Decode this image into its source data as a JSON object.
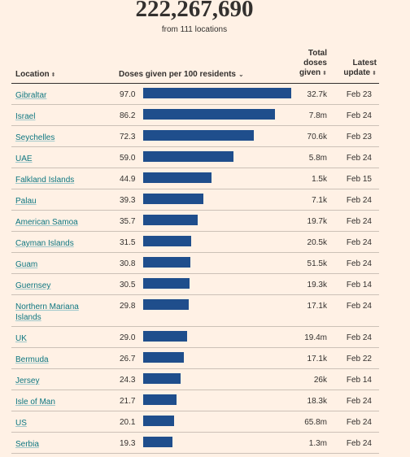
{
  "header": {
    "total_doses": "222,267,690",
    "subtitle": "from 111 locations"
  },
  "columns": {
    "location": "Location",
    "doses": "Doses given per 100 residents",
    "total_line1": "Total",
    "total_line2": "doses",
    "total_line3": "given",
    "latest_line1": "Latest",
    "latest_line2": "update",
    "sort_glyph": "⬍",
    "caret_glyph": "⌄"
  },
  "colors": {
    "bar": "#1f4e8c",
    "background": "#fff1e5",
    "link": "#0d7680"
  },
  "rows": [
    {
      "location": "Gibraltar",
      "per100": "97.0",
      "value": 97.0,
      "total": "32.7k",
      "updated": "Feb 23"
    },
    {
      "location": "Israel",
      "per100": "86.2",
      "value": 86.2,
      "total": "7.8m",
      "updated": "Feb 24"
    },
    {
      "location": "Seychelles",
      "per100": "72.3",
      "value": 72.3,
      "total": "70.6k",
      "updated": "Feb 23"
    },
    {
      "location": "UAE",
      "per100": "59.0",
      "value": 59.0,
      "total": "5.8m",
      "updated": "Feb 24"
    },
    {
      "location": "Falkland Islands",
      "per100": "44.9",
      "value": 44.9,
      "total": "1.5k",
      "updated": "Feb 15"
    },
    {
      "location": "Palau",
      "per100": "39.3",
      "value": 39.3,
      "total": "7.1k",
      "updated": "Feb 24"
    },
    {
      "location": "American Samoa",
      "per100": "35.7",
      "value": 35.7,
      "total": "19.7k",
      "updated": "Feb 24"
    },
    {
      "location": "Cayman Islands",
      "per100": "31.5",
      "value": 31.5,
      "total": "20.5k",
      "updated": "Feb 24"
    },
    {
      "location": "Guam",
      "per100": "30.8",
      "value": 30.8,
      "total": "51.5k",
      "updated": "Feb 24"
    },
    {
      "location": "Guernsey",
      "per100": "30.5",
      "value": 30.5,
      "total": "19.3k",
      "updated": "Feb 14"
    },
    {
      "location": "Northern Mariana Islands",
      "per100": "29.8",
      "value": 29.8,
      "total": "17.1k",
      "updated": "Feb 24"
    },
    {
      "location": "UK",
      "per100": "29.0",
      "value": 29.0,
      "total": "19.4m",
      "updated": "Feb 24"
    },
    {
      "location": "Bermuda",
      "per100": "26.7",
      "value": 26.7,
      "total": "17.1k",
      "updated": "Feb 22"
    },
    {
      "location": "Jersey",
      "per100": "24.3",
      "value": 24.3,
      "total": "26k",
      "updated": "Feb 14"
    },
    {
      "location": "Isle of Man",
      "per100": "21.7",
      "value": 21.7,
      "total": "18.3k",
      "updated": "Feb 24"
    },
    {
      "location": "US",
      "per100": "20.1",
      "value": 20.1,
      "total": "65.8m",
      "updated": "Feb 24"
    },
    {
      "location": "Serbia",
      "per100": "19.3",
      "value": 19.3,
      "total": "1.3m",
      "updated": "Feb 24"
    }
  ]
}
